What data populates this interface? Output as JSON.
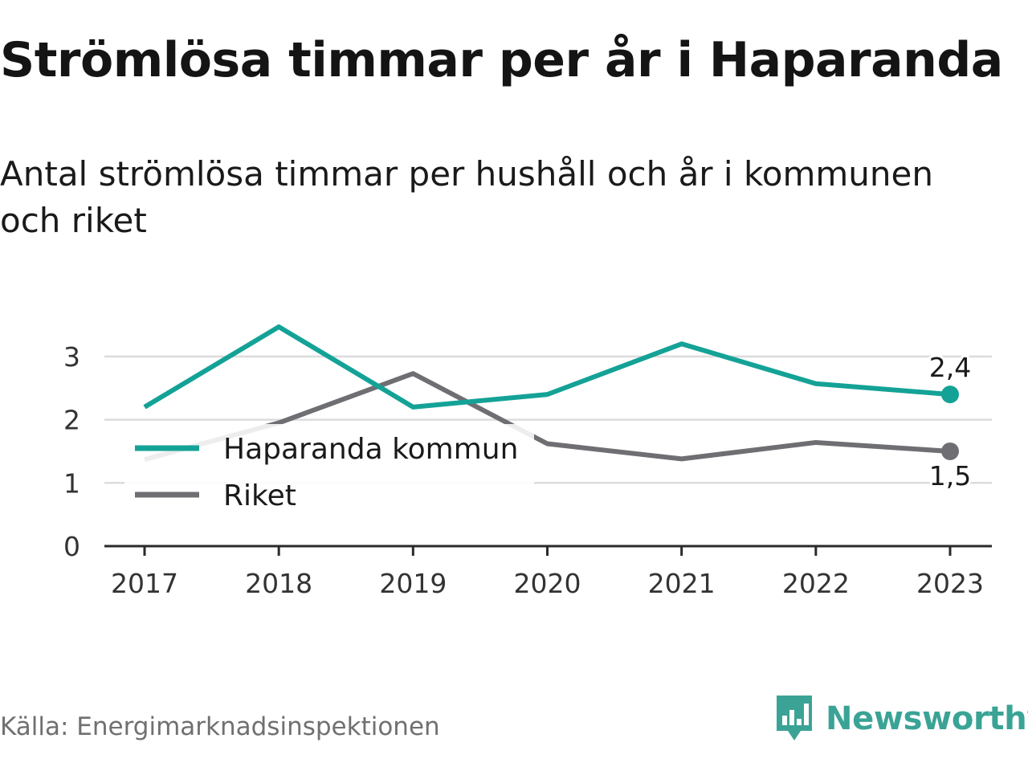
{
  "title": "Strömlösa timmar per år i Haparanda",
  "subtitle": "Antal strömlösa timmar per hushåll och år i kommunen och riket",
  "source": "Källa: Energimarknadsinspektionen",
  "brand": {
    "name": "Newsworthy",
    "icon": "bar-chart-speech-bubble-icon",
    "color": "#3aa396"
  },
  "chart_data": {
    "type": "line",
    "x": [
      "2017",
      "2018",
      "2019",
      "2020",
      "2021",
      "2022",
      "2023"
    ],
    "ylim": [
      0,
      3.5
    ],
    "yticks": [
      0,
      1,
      2,
      3
    ],
    "grid": true,
    "legend_position": "left",
    "series": [
      {
        "name": "Haparanda kommun",
        "color": "#14a296",
        "values": [
          2.2,
          3.47,
          2.2,
          2.4,
          3.2,
          2.57,
          2.4
        ],
        "end_label": "2,4"
      },
      {
        "name": "Riket",
        "color": "#6e6e73",
        "values": [
          1.37,
          1.95,
          2.73,
          1.62,
          1.38,
          1.64,
          1.5
        ],
        "end_label": "1,5"
      }
    ]
  }
}
